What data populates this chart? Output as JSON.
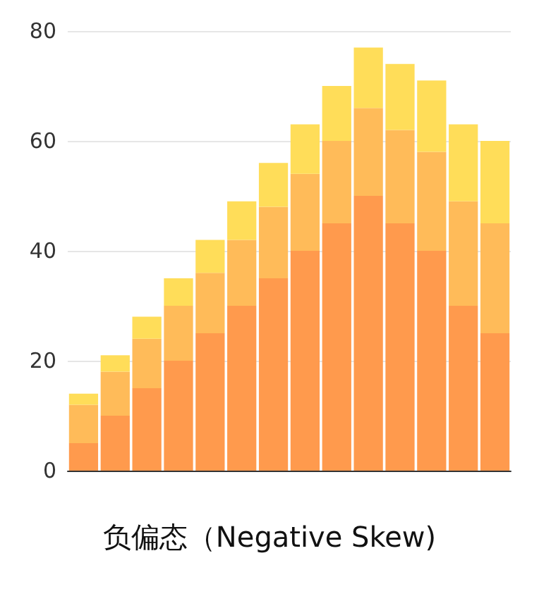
{
  "chart_data": {
    "type": "bar",
    "title": "负偏态（Negative Skew)",
    "stacked": true,
    "categories": [
      null,
      null,
      null,
      null,
      null,
      null,
      null,
      null,
      null,
      null,
      null,
      null,
      null,
      null
    ],
    "series": [
      {
        "color": "#ff9a4d",
        "values": [
          5,
          10,
          15,
          20,
          25,
          30,
          35,
          40,
          45,
          50,
          45,
          40,
          30,
          25
        ]
      },
      {
        "color": "#ffbb59",
        "values": [
          7,
          8,
          9,
          10,
          11,
          12,
          13,
          14,
          15,
          16,
          17,
          18,
          19,
          20
        ]
      },
      {
        "color": "#ffdd59",
        "values": [
          2,
          3,
          4,
          5,
          6,
          7,
          8,
          9,
          10,
          11,
          12,
          13,
          14,
          15
        ]
      }
    ],
    "ylim": [
      0,
      80
    ],
    "yticks": [
      0,
      20,
      40,
      60,
      80
    ],
    "grid": "y",
    "tick_labels": "y"
  }
}
